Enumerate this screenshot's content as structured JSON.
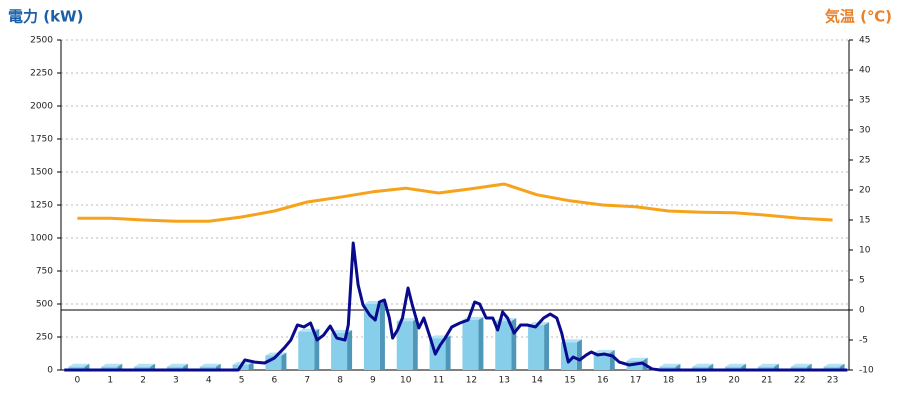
{
  "chart_data": {
    "type": "bar",
    "ylabel": "電力 (kW)",
    "y2label": "気温 (℃)",
    "categories": [
      "0",
      "1",
      "2",
      "3",
      "4",
      "5",
      "6",
      "7",
      "8",
      "9",
      "10",
      "11",
      "12",
      "13",
      "14",
      "15",
      "16",
      "17",
      "18",
      "19",
      "20",
      "21",
      "22",
      "23"
    ],
    "xlim": [
      -0.5,
      23.5
    ],
    "ylim": [
      0,
      2500
    ],
    "yticks": [
      0,
      250,
      500,
      750,
      1000,
      1250,
      1500,
      1750,
      2000,
      2250,
      2500
    ],
    "y2lim": [
      -10,
      45
    ],
    "y2ticks": [
      -10,
      -5,
      0,
      5,
      10,
      15,
      20,
      25,
      30,
      35,
      40,
      45
    ],
    "grid": true,
    "series": [
      {
        "type": "bar",
        "color": "#87ceeb",
        "values": [
          25,
          25,
          25,
          25,
          25,
          40,
          110,
          290,
          280,
          500,
          370,
          240,
          380,
          370,
          340,
          210,
          130,
          70,
          25,
          25,
          25,
          25,
          25,
          25
        ]
      },
      {
        "type": "line",
        "color": "#0a0a8c",
        "x": [
          -0.4,
          4.9,
          5.1,
          5.4,
          5.7,
          6.0,
          6.3,
          6.5,
          6.7,
          6.9,
          7.1,
          7.3,
          7.5,
          7.7,
          7.9,
          8.15,
          8.25,
          8.4,
          8.55,
          8.7,
          8.9,
          9.07,
          9.2,
          9.35,
          9.5,
          9.6,
          9.75,
          9.9,
          10.07,
          10.2,
          10.4,
          10.55,
          10.7,
          10.9,
          11.05,
          11.2,
          11.4,
          11.65,
          11.9,
          12.1,
          12.25,
          12.45,
          12.65,
          12.8,
          12.95,
          13.1,
          13.3,
          13.5,
          13.7,
          13.95,
          14.2,
          14.4,
          14.6,
          14.75,
          14.95,
          15.1,
          15.3,
          15.5,
          15.65,
          15.85,
          16.05,
          16.3,
          16.5,
          16.8,
          17.2,
          17.5,
          17.75,
          23.45
        ],
        "values": [
          0,
          0,
          76,
          60,
          53,
          91,
          167,
          227,
          341,
          326,
          356,
          227,
          265,
          333,
          242,
          227,
          341,
          962,
          644,
          492,
          417,
          379,
          515,
          530,
          394,
          242,
          303,
          394,
          621,
          492,
          318,
          394,
          280,
          121,
          189,
          242,
          326,
          356,
          379,
          515,
          500,
          394,
          394,
          303,
          439,
          394,
          280,
          341,
          341,
          326,
          394,
          424,
          394,
          280,
          60,
          98,
          76,
          114,
          136,
          114,
          121,
          106,
          60,
          38,
          53,
          8,
          0,
          0
        ]
      },
      {
        "type": "line",
        "axis": "y2",
        "color": "#f7a21b",
        "values": [
          15.3,
          15.3,
          15,
          14.8,
          14.8,
          15.5,
          16.5,
          18,
          18.8,
          19.7,
          20.3,
          19.5,
          20.2,
          21,
          19.2,
          18.2,
          17.5,
          17.2,
          16.5,
          16.3,
          16.2,
          15.8,
          15.3,
          15
        ]
      }
    ]
  }
}
